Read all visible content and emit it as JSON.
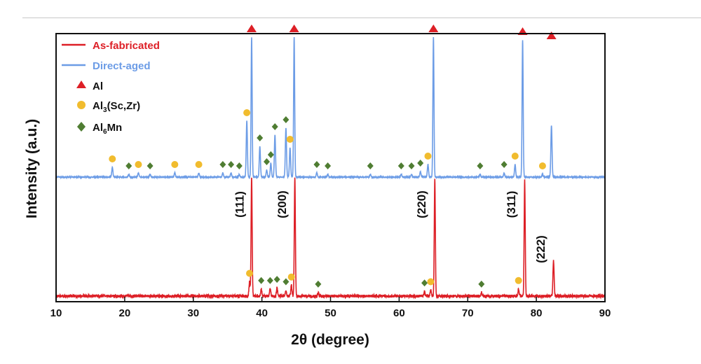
{
  "chart_data": {
    "type": "line",
    "xlabel": "2θ (degree)",
    "ylabel": "Intensity (a.u.)",
    "xlim": [
      10,
      90
    ],
    "xticks": [
      10,
      20,
      30,
      40,
      50,
      60,
      70,
      80,
      90
    ],
    "grid": false,
    "legend_position": "top-left",
    "colors": {
      "as_fabricated": "#dd1f26",
      "direct_aged": "#6c9ce6",
      "al_marker": "#dd1f26",
      "al3sczr_marker": "#f1bc2e",
      "al6mn_marker": "#4f7d32",
      "axis": "#111111"
    },
    "legend": {
      "as_fabricated": "As-fabricated",
      "direct_aged": "Direct-aged",
      "al": "Al",
      "al3sczr_main": "Al",
      "al3sczr_sub": "3",
      "al3sczr_rest": "(Sc,Zr)",
      "al6mn_main": "Al",
      "al6mn_sub": "6",
      "al6mn_rest": "Mn"
    },
    "peak_labels": [
      {
        "x": 38.5,
        "text": "(111)"
      },
      {
        "x": 44.7,
        "text": "(200)"
      },
      {
        "x": 65.0,
        "text": "(220)"
      },
      {
        "x": 78.1,
        "text": "(311)"
      },
      {
        "x": 82.4,
        "text": "(222)"
      }
    ],
    "series": [
      {
        "name": "As-fabricated",
        "peaks": [
          {
            "x": 38.5,
            "h": 1.0
          },
          {
            "x": 44.8,
            "h": 1.0
          },
          {
            "x": 65.2,
            "h": 0.98
          },
          {
            "x": 78.3,
            "h": 0.97
          },
          {
            "x": 82.5,
            "h": 0.3
          },
          {
            "x": 38.2,
            "h": 0.12
          },
          {
            "x": 39.9,
            "h": 0.06
          },
          {
            "x": 41.2,
            "h": 0.06
          },
          {
            "x": 42.2,
            "h": 0.07
          },
          {
            "x": 43.5,
            "h": 0.05
          },
          {
            "x": 44.3,
            "h": 0.09
          },
          {
            "x": 48.2,
            "h": 0.03
          },
          {
            "x": 63.7,
            "h": 0.04
          },
          {
            "x": 64.6,
            "h": 0.05
          },
          {
            "x": 72.0,
            "h": 0.03
          },
          {
            "x": 77.4,
            "h": 0.06
          }
        ],
        "al_markers": [],
        "al3sczr_markers": [
          38.2,
          44.3,
          64.6,
          77.4
        ],
        "al6mn_markers": [
          39.9,
          41.2,
          42.2,
          43.5,
          48.2,
          63.7,
          72.0
        ]
      },
      {
        "name": "Direct-aged",
        "peaks": [
          {
            "x": 38.5,
            "h": 1.0
          },
          {
            "x": 44.7,
            "h": 1.0
          },
          {
            "x": 65.0,
            "h": 1.0
          },
          {
            "x": 78.0,
            "h": 0.98
          },
          {
            "x": 82.2,
            "h": 0.37
          },
          {
            "x": 18.2,
            "h": 0.07
          },
          {
            "x": 20.6,
            "h": 0.02
          },
          {
            "x": 22.0,
            "h": 0.03
          },
          {
            "x": 23.7,
            "h": 0.02
          },
          {
            "x": 27.3,
            "h": 0.03
          },
          {
            "x": 30.8,
            "h": 0.03
          },
          {
            "x": 34.3,
            "h": 0.03
          },
          {
            "x": 35.5,
            "h": 0.03
          },
          {
            "x": 36.7,
            "h": 0.02
          },
          {
            "x": 37.8,
            "h": 0.4
          },
          {
            "x": 39.7,
            "h": 0.22
          },
          {
            "x": 40.7,
            "h": 0.05
          },
          {
            "x": 41.3,
            "h": 0.1
          },
          {
            "x": 41.9,
            "h": 0.3
          },
          {
            "x": 43.5,
            "h": 0.35
          },
          {
            "x": 44.1,
            "h": 0.21
          },
          {
            "x": 48.0,
            "h": 0.03
          },
          {
            "x": 49.6,
            "h": 0.02
          },
          {
            "x": 55.8,
            "h": 0.02
          },
          {
            "x": 60.3,
            "h": 0.02
          },
          {
            "x": 61.8,
            "h": 0.02
          },
          {
            "x": 63.1,
            "h": 0.04
          },
          {
            "x": 64.2,
            "h": 0.09
          },
          {
            "x": 71.8,
            "h": 0.02
          },
          {
            "x": 75.3,
            "h": 0.03
          },
          {
            "x": 76.9,
            "h": 0.09
          },
          {
            "x": 80.9,
            "h": 0.02
          }
        ],
        "al_markers": [
          38.5,
          44.7,
          65.0,
          78.0,
          82.2
        ],
        "al3sczr_markers": [
          18.2,
          22.0,
          27.3,
          30.8,
          37.8,
          44.1,
          64.2,
          76.9,
          80.9
        ],
        "al6mn_markers": [
          20.6,
          23.7,
          34.3,
          35.5,
          36.7,
          39.7,
          40.7,
          41.3,
          41.9,
          43.5,
          48.0,
          49.6,
          55.8,
          60.3,
          61.8,
          63.1,
          71.8,
          75.3
        ]
      }
    ]
  }
}
